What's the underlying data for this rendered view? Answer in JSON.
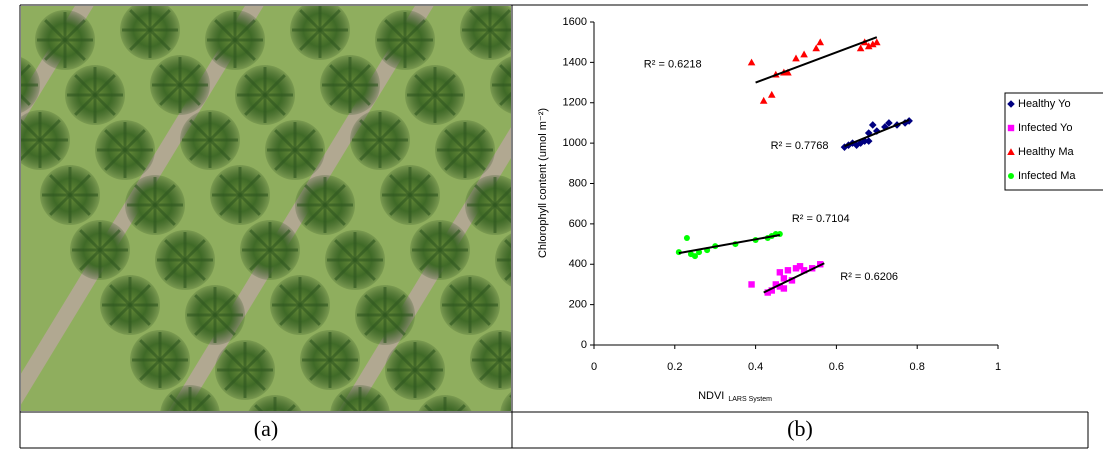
{
  "captions": [
    "(a)",
    "(b)"
  ],
  "chart_data": {
    "type": "scatter",
    "x_label": "NDVI",
    "x_label_sub": "LARS System",
    "y_label": "Chlorophyll content (umol m⁻²)",
    "xlim": [
      0,
      1
    ],
    "xticks": [
      0,
      0.2,
      0.4,
      0.6,
      0.8,
      1
    ],
    "ylim": [
      0,
      1600
    ],
    "yticks": [
      0,
      200,
      400,
      600,
      800,
      1000,
      1200,
      1400,
      1600
    ],
    "legend": "right",
    "series": [
      {
        "name": "Healthy Yo",
        "color": "#000080",
        "marker": "diamond",
        "x": [
          0.62,
          0.63,
          0.64,
          0.65,
          0.66,
          0.67,
          0.68,
          0.68,
          0.69,
          0.7,
          0.72,
          0.73,
          0.75,
          0.77,
          0.78
        ],
        "values": [
          980,
          990,
          1000,
          990,
          1000,
          1010,
          1050,
          1010,
          1090,
          1060,
          1080,
          1100,
          1090,
          1100,
          1110
        ],
        "trend": {
          "x": [
            0.62,
            0.78
          ],
          "y": [
            985,
            1115
          ]
        },
        "r2": "R² = 0.7768"
      },
      {
        "name": "Infected Yo",
        "color": "#ff00ff",
        "marker": "square",
        "x": [
          0.39,
          0.43,
          0.44,
          0.45,
          0.46,
          0.46,
          0.47,
          0.47,
          0.48,
          0.49,
          0.5,
          0.51,
          0.52,
          0.54,
          0.56
        ],
        "values": [
          300,
          260,
          270,
          300,
          290,
          360,
          330,
          280,
          370,
          320,
          380,
          390,
          370,
          380,
          400
        ],
        "trend": {
          "x": [
            0.42,
            0.57
          ],
          "y": [
            260,
            405
          ]
        },
        "r2": "R² = 0.6206"
      },
      {
        "name": "Healthy Ma",
        "color": "#ff0000",
        "marker": "triangle",
        "x": [
          0.39,
          0.42,
          0.44,
          0.45,
          0.47,
          0.48,
          0.5,
          0.52,
          0.55,
          0.56,
          0.66,
          0.67,
          0.68,
          0.69,
          0.7
        ],
        "values": [
          1400,
          1210,
          1240,
          1340,
          1350,
          1350,
          1420,
          1440,
          1470,
          1500,
          1470,
          1500,
          1480,
          1490,
          1500
        ],
        "trend": {
          "x": [
            0.4,
            0.7
          ],
          "y": [
            1300,
            1525
          ]
        },
        "r2": "R² = 0.6218"
      },
      {
        "name": "Infected Ma",
        "color": "#00ff00",
        "marker": "circle",
        "x": [
          0.21,
          0.23,
          0.24,
          0.25,
          0.26,
          0.28,
          0.3,
          0.35,
          0.4,
          0.43,
          0.44,
          0.45,
          0.46
        ],
        "values": [
          460,
          530,
          450,
          440,
          460,
          470,
          490,
          500,
          520,
          530,
          540,
          550,
          550
        ],
        "trend": {
          "x": [
            0.21,
            0.46
          ],
          "y": [
            455,
            545
          ]
        },
        "r2": "R² = 0.7104"
      }
    ]
  }
}
